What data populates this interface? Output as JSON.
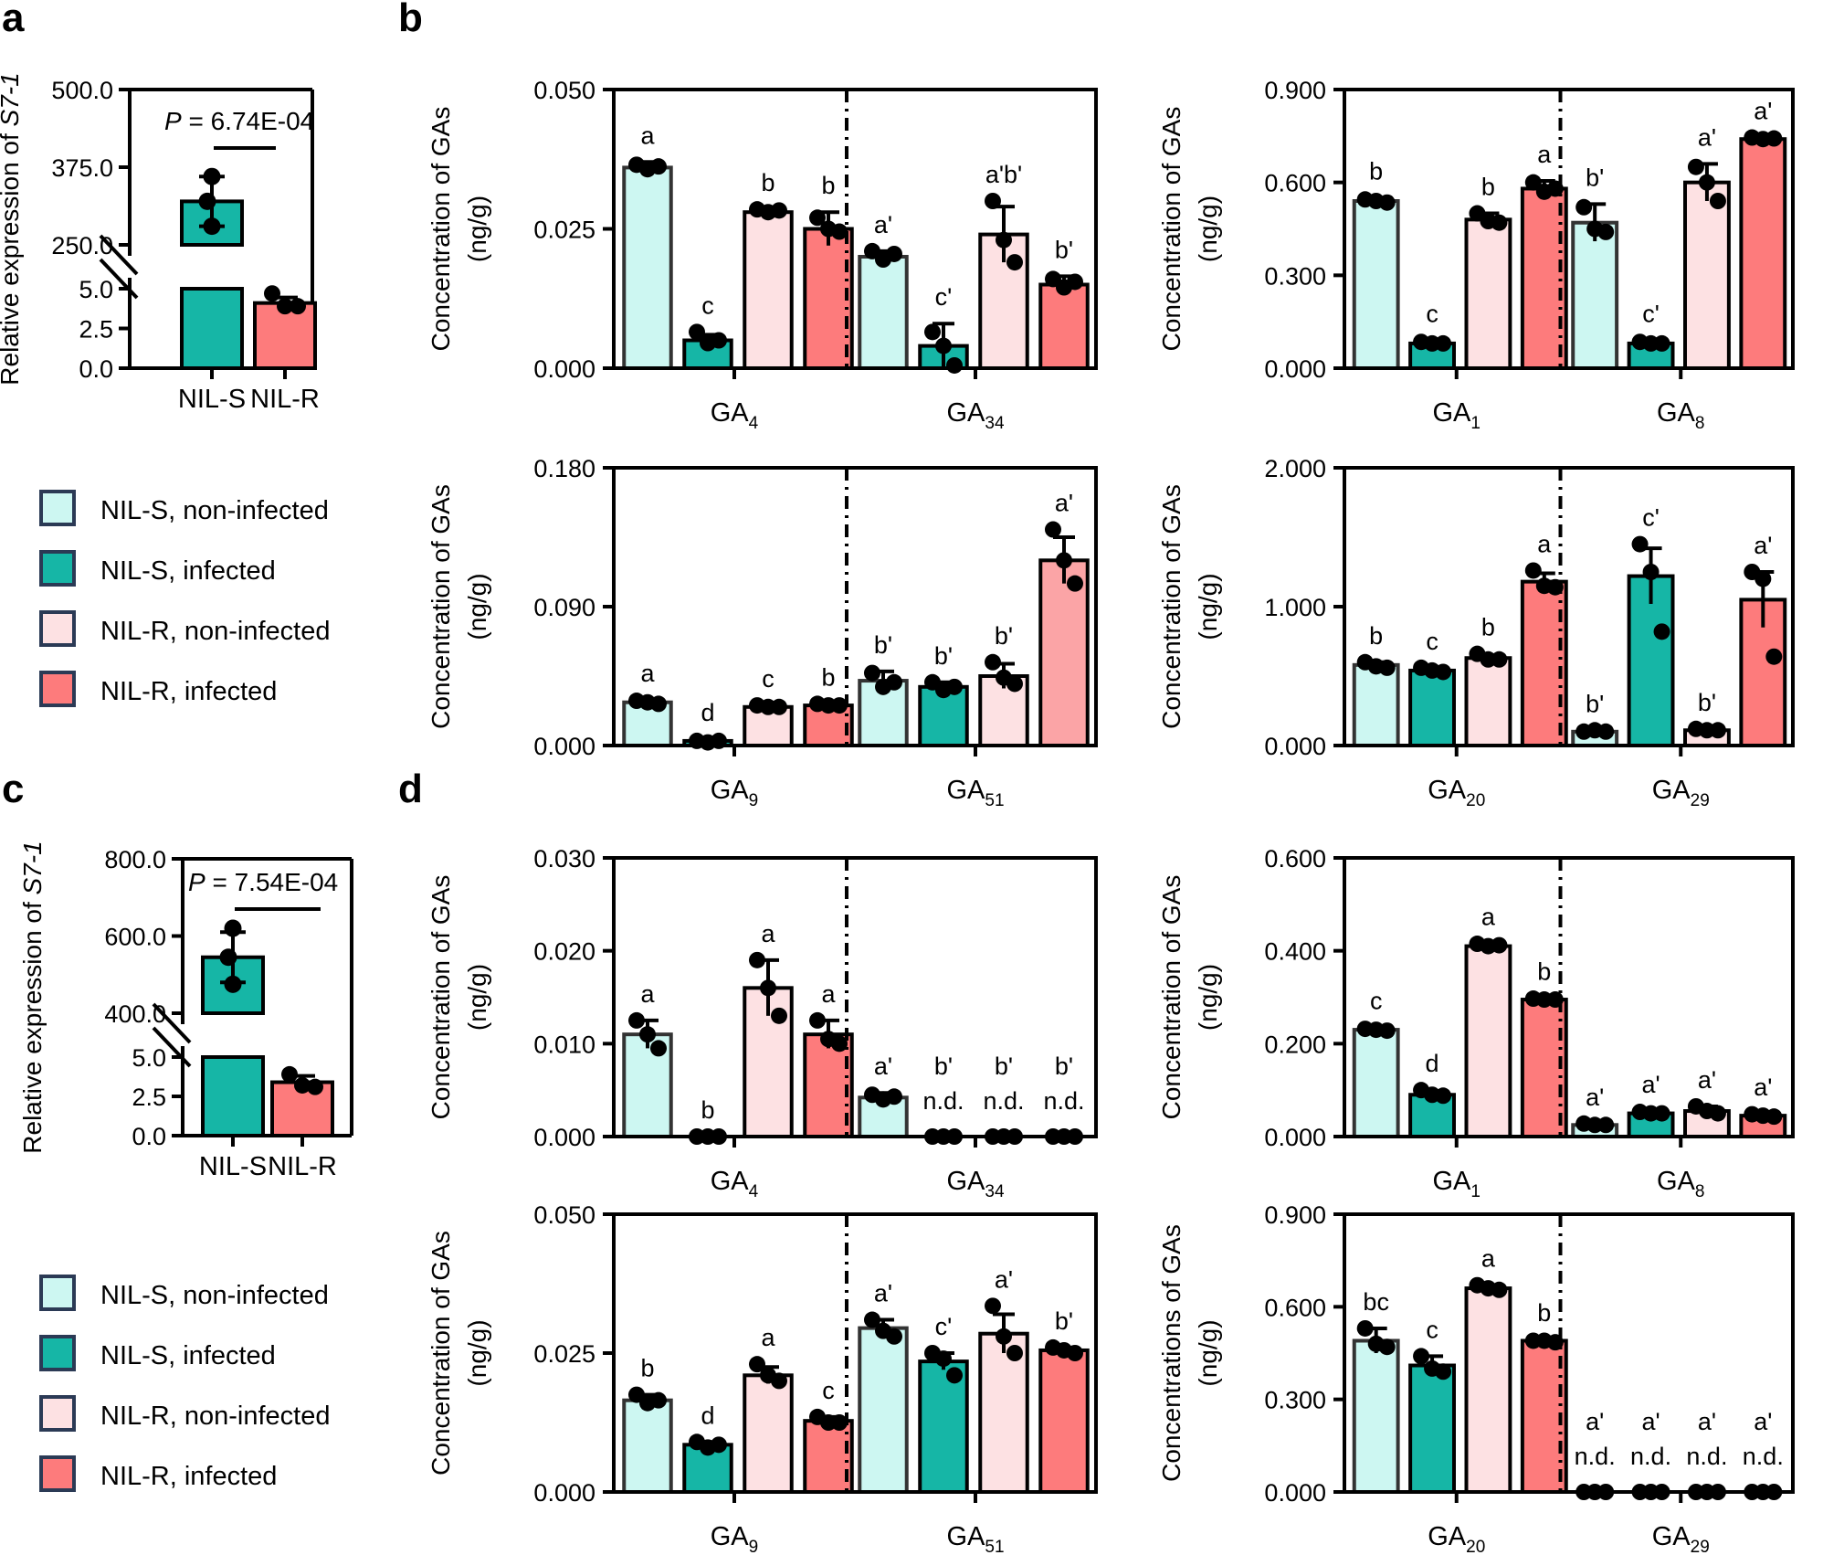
{
  "panel_labels": [
    "a",
    "b",
    "c",
    "d"
  ],
  "colors": {
    "nil_s_noninfected": "#cdf7f2",
    "nil_s_infected": "#16b6a6",
    "nil_r_noninfected": "#fde1e3",
    "nil_r_infected": "#fd7b7c",
    "nil_r_infected_light": "#fba4a6",
    "axis": "#000000",
    "legend_border": "#2b3a55"
  },
  "legend": [
    {
      "label": "NIL-S, non-infected",
      "color_key": "nil_s_noninfected"
    },
    {
      "label": "NIL-S, infected",
      "color_key": "nil_s_infected"
    },
    {
      "label": "NIL-R, non-infected",
      "color_key": "nil_r_noninfected"
    },
    {
      "label": "NIL-R, infected",
      "color_key": "nil_r_infected"
    }
  ],
  "chart_data": [
    {
      "id": "a",
      "type": "bar",
      "ylabel_prefix": "Relative expression of ",
      "ylabel_gene": "S7-1",
      "categories": [
        "NIL-S",
        "NIL-R"
      ],
      "values": [
        320,
        4.1
      ],
      "errors": [
        40,
        0.35
      ],
      "points": [
        [
          360,
          320,
          280
        ],
        [
          4.7,
          3.9,
          3.9
        ]
      ],
      "pvalue_label": "P",
      "pvalue_text": " = 6.74E-04",
      "ticks_upper": [
        "500.0",
        "375.0",
        "250.0"
      ],
      "ticks_lower": [
        "5.0",
        "2.5",
        "0.0"
      ],
      "upper_range": [
        250,
        500
      ],
      "lower_range": [
        0,
        5
      ],
      "color_keys": [
        "nil_s_infected",
        "nil_r_infected"
      ]
    },
    {
      "id": "c",
      "type": "bar",
      "ylabel_prefix": "Relative expression of ",
      "ylabel_gene": "S7-1",
      "categories": [
        "NIL-S",
        "NIL-R"
      ],
      "values": [
        545,
        3.4
      ],
      "errors": [
        65,
        0.4
      ],
      "points": [
        [
          620,
          545,
          475
        ],
        [
          3.9,
          3.2,
          3.1
        ]
      ],
      "pvalue_label": "P",
      "pvalue_text": " = 7.54E-04",
      "ticks_upper": [
        "800.0",
        "600.0",
        "400.0"
      ],
      "ticks_lower": [
        "5.0",
        "2.5",
        "0.0"
      ],
      "upper_range": [
        400,
        800
      ],
      "lower_range": [
        0,
        5
      ],
      "color_keys": [
        "nil_s_infected",
        "nil_r_infected"
      ]
    },
    {
      "id": "b1",
      "type": "bar",
      "ylabel_line1": "Concentration of GAs",
      "ylabel_line2": "(ng/g)",
      "ymax": 0.05,
      "yticks": [
        "0.000",
        "0.025",
        "0.050"
      ],
      "groups": [
        {
          "name": "GA",
          "sub": "4",
          "values": [
            0.036,
            0.005,
            0.028,
            0.025
          ],
          "errors": [
            0.001,
            0.001,
            0.0005,
            0.003
          ],
          "points": [
            [
              0.0365,
              0.0357,
              0.0362
            ],
            [
              0.0065,
              0.0045,
              0.005
            ],
            [
              0.0285,
              0.028,
              0.0283
            ],
            [
              0.027,
              0.025,
              0.0245
            ]
          ],
          "letters": [
            "a",
            "c",
            "b",
            "b"
          ],
          "nd": [
            false,
            false,
            false,
            false
          ]
        },
        {
          "name": "GA",
          "sub": "34",
          "values": [
            0.02,
            0.004,
            0.024,
            0.015
          ],
          "errors": [
            0.001,
            0.004,
            0.005,
            0.0015
          ],
          "points": [
            [
              0.021,
              0.0195,
              0.0205
            ],
            [
              0.0065,
              0.004,
              0.0005
            ],
            [
              0.03,
              0.023,
              0.019
            ],
            [
              0.016,
              0.0145,
              0.0155
            ]
          ],
          "letters": [
            "a'",
            "c'",
            "a'b'",
            "b'"
          ],
          "nd": [
            false,
            false,
            false,
            false
          ]
        }
      ]
    },
    {
      "id": "b2",
      "type": "bar",
      "ylabel_line1": "Concentration of GAs",
      "ylabel_line2": "(ng/g)",
      "ymax": 0.9,
      "yticks": [
        "0.000",
        "0.300",
        "0.600",
        "0.900"
      ],
      "groups": [
        {
          "name": "GA",
          "sub": "1",
          "values": [
            0.54,
            0.08,
            0.48,
            0.58
          ],
          "errors": [
            0.01,
            0.01,
            0.02,
            0.025
          ],
          "points": [
            [
              0.545,
              0.54,
              0.535
            ],
            [
              0.085,
              0.08,
              0.08
            ],
            [
              0.5,
              0.475,
              0.47
            ],
            [
              0.6,
              0.57,
              0.58
            ]
          ],
          "letters": [
            "b",
            "c",
            "b",
            "a"
          ],
          "nd": [
            false,
            false,
            false,
            false
          ]
        },
        {
          "name": "GA",
          "sub": "8",
          "values": [
            0.47,
            0.08,
            0.6,
            0.74
          ],
          "errors": [
            0.06,
            0.01,
            0.06,
            0.005
          ],
          "points": [
            [
              0.52,
              0.45,
              0.44
            ],
            [
              0.085,
              0.08,
              0.08
            ],
            [
              0.65,
              0.6,
              0.54
            ],
            [
              0.745,
              0.74,
              0.742
            ]
          ],
          "letters": [
            "b'",
            "c'",
            "a'",
            "a'"
          ],
          "nd": [
            false,
            false,
            false,
            false
          ]
        }
      ]
    },
    {
      "id": "b3",
      "type": "bar",
      "ylabel_line1": "Concentration of GAs",
      "ylabel_line2": "(ng/g)",
      "ymax": 0.18,
      "yticks": [
        "0.000",
        "0.090",
        "0.180"
      ],
      "groups": [
        {
          "name": "GA",
          "sub": "9",
          "values": [
            0.028,
            0.003,
            0.025,
            0.026
          ],
          "errors": [
            0.0015,
            0.001,
            0.001,
            0.001
          ],
          "points": [
            [
              0.029,
              0.028,
              0.027
            ],
            [
              0.003,
              0.002,
              0.003
            ],
            [
              0.026,
              0.025,
              0.025
            ],
            [
              0.027,
              0.026,
              0.026
            ]
          ],
          "letters": [
            "a",
            "d",
            "c",
            "b"
          ],
          "nd": [
            false,
            false,
            false,
            false
          ]
        },
        {
          "name": "GA",
          "sub": "51",
          "values": [
            0.042,
            0.038,
            0.045,
            0.12
          ],
          "errors": [
            0.006,
            0.003,
            0.008,
            0.015
          ],
          "points": [
            [
              0.047,
              0.038,
              0.041
            ],
            [
              0.041,
              0.036,
              0.038
            ],
            [
              0.054,
              0.044,
              0.04
            ],
            [
              0.14,
              0.12,
              0.105
            ]
          ],
          "letters": [
            "b'",
            "b'",
            "b'",
            "a'"
          ],
          "nd": [
            false,
            false,
            false,
            false
          ]
        }
      ]
    },
    {
      "id": "b4",
      "type": "bar",
      "ylabel_line1": "Concentration of GAs",
      "ylabel_line2": "(ng/g)",
      "ymax": 2.0,
      "yticks": [
        "0.000",
        "1.000",
        "2.000"
      ],
      "groups": [
        {
          "name": "GA",
          "sub": "20",
          "values": [
            0.58,
            0.54,
            0.63,
            1.18
          ],
          "errors": [
            0.02,
            0.02,
            0.02,
            0.06
          ],
          "points": [
            [
              0.6,
              0.57,
              0.56
            ],
            [
              0.56,
              0.54,
              0.53
            ],
            [
              0.66,
              0.62,
              0.62
            ],
            [
              1.26,
              1.15,
              1.14
            ]
          ],
          "letters": [
            "b",
            "c",
            "b",
            "a"
          ],
          "nd": [
            false,
            false,
            false,
            false
          ]
        },
        {
          "name": "GA",
          "sub": "29",
          "values": [
            0.1,
            1.22,
            0.11,
            1.05
          ],
          "errors": [
            0.005,
            0.2,
            0.005,
            0.2
          ],
          "points": [
            [
              0.1,
              0.11,
              0.1
            ],
            [
              1.45,
              1.25,
              0.82
            ],
            [
              0.12,
              0.11,
              0.11
            ],
            [
              1.25,
              1.2,
              0.64
            ]
          ],
          "letters": [
            "b'",
            "c'",
            "b'",
            "a'"
          ],
          "nd": [
            false,
            false,
            false,
            false
          ]
        }
      ]
    },
    {
      "id": "d1",
      "type": "bar",
      "ylabel_line1": "Concentration of GAs",
      "ylabel_line2": "(ng/g)",
      "ymax": 0.03,
      "yticks": [
        "0.000",
        "0.010",
        "0.020",
        "0.030"
      ],
      "groups": [
        {
          "name": "GA",
          "sub": "4",
          "values": [
            0.011,
            0.0,
            0.016,
            0.011
          ],
          "errors": [
            0.0015,
            0.0,
            0.003,
            0.0015
          ],
          "points": [
            [
              0.0125,
              0.011,
              0.0095
            ],
            [
              0,
              0,
              0
            ],
            [
              0.019,
              0.016,
              0.013
            ],
            [
              0.0125,
              0.0105,
              0.01
            ]
          ],
          "letters": [
            "a",
            "b",
            "a",
            "a"
          ],
          "nd": [
            false,
            false,
            false,
            false
          ]
        },
        {
          "name": "GA",
          "sub": "34",
          "values": [
            0.0042,
            0.0,
            0.0,
            0.0
          ],
          "errors": [
            0.0005,
            0,
            0,
            0
          ],
          "points": [
            [
              0.0045,
              0.004,
              0.0043
            ],
            [
              0,
              0,
              0
            ],
            [
              0,
              0,
              0
            ],
            [
              0,
              0,
              0
            ]
          ],
          "letters": [
            "a'",
            "b'",
            "b'",
            "b'"
          ],
          "nd": [
            false,
            true,
            true,
            true
          ],
          "nd_text": "n.d."
        }
      ]
    },
    {
      "id": "d2",
      "type": "bar",
      "ylabel_line1": "Concentration of GAs",
      "ylabel_line2": "(ng/g)",
      "ymax": 0.6,
      "yticks": [
        "0.000",
        "0.200",
        "0.400",
        "0.600"
      ],
      "groups": [
        {
          "name": "GA",
          "sub": "1",
          "values": [
            0.23,
            0.09,
            0.41,
            0.295
          ],
          "errors": [
            0.005,
            0.007,
            0.006,
            0.003
          ],
          "points": [
            [
              0.232,
              0.23,
              0.228
            ],
            [
              0.1,
              0.09,
              0.088
            ],
            [
              0.415,
              0.41,
              0.412
            ],
            [
              0.297,
              0.295,
              0.295
            ]
          ],
          "letters": [
            "c",
            "d",
            "a",
            "b"
          ],
          "nd": [
            false,
            false,
            false,
            false
          ]
        },
        {
          "name": "GA",
          "sub": "8",
          "values": [
            0.025,
            0.05,
            0.055,
            0.045
          ],
          "errors": [
            0.003,
            0.005,
            0.01,
            0.004
          ],
          "points": [
            [
              0.028,
              0.025,
              0.025
            ],
            [
              0.053,
              0.05,
              0.05
            ],
            [
              0.065,
              0.055,
              0.05
            ],
            [
              0.048,
              0.045,
              0.043
            ]
          ],
          "letters": [
            "a'",
            "a'",
            "a'",
            "a'"
          ],
          "nd": [
            false,
            false,
            false,
            false
          ]
        }
      ]
    },
    {
      "id": "d3",
      "type": "bar",
      "ylabel_line1": "Concentration of GAs",
      "ylabel_line2": "(ng/g)",
      "ymax": 0.05,
      "yticks": [
        "0.000",
        "0.025",
        "0.050"
      ],
      "groups": [
        {
          "name": "GA",
          "sub": "9",
          "values": [
            0.0165,
            0.0085,
            0.021,
            0.0128
          ],
          "errors": [
            0.001,
            0.0005,
            0.0015,
            0.0007
          ],
          "points": [
            [
              0.0175,
              0.016,
              0.0165
            ],
            [
              0.009,
              0.008,
              0.0085
            ],
            [
              0.023,
              0.021,
              0.02
            ],
            [
              0.0135,
              0.0125,
              0.0125
            ]
          ],
          "letters": [
            "b",
            "d",
            "a",
            "c"
          ],
          "nd": [
            false,
            false,
            false,
            false
          ]
        },
        {
          "name": "GA",
          "sub": "51",
          "values": [
            0.0295,
            0.0235,
            0.0285,
            0.0255
          ],
          "errors": [
            0.0015,
            0.0015,
            0.0035,
            0.0005
          ],
          "points": [
            [
              0.031,
              0.029,
              0.028
            ],
            [
              0.025,
              0.024,
              0.021
            ],
            [
              0.0335,
              0.028,
              0.025
            ],
            [
              0.026,
              0.0255,
              0.025
            ]
          ],
          "letters": [
            "a'",
            "c'",
            "a'",
            "b'"
          ],
          "nd": [
            false,
            false,
            false,
            false
          ]
        }
      ]
    },
    {
      "id": "d4",
      "type": "bar",
      "ylabel_line1": "Concentrations of GAs",
      "ylabel_line2": "(ng/g)",
      "ymax": 0.9,
      "yticks": [
        "0.000",
        "0.300",
        "0.600",
        "0.900"
      ],
      "groups": [
        {
          "name": "GA",
          "sub": "20",
          "values": [
            0.49,
            0.41,
            0.66,
            0.49
          ],
          "errors": [
            0.04,
            0.03,
            0.01,
            0.005
          ],
          "points": [
            [
              0.53,
              0.48,
              0.47
            ],
            [
              0.44,
              0.4,
              0.39
            ],
            [
              0.67,
              0.66,
              0.655
            ],
            [
              0.49,
              0.49,
              0.485
            ]
          ],
          "letters": [
            "bc",
            "c",
            "a",
            "b"
          ],
          "nd": [
            false,
            false,
            false,
            false
          ]
        },
        {
          "name": "GA",
          "sub": "29",
          "values": [
            0,
            0,
            0,
            0
          ],
          "errors": [
            0,
            0,
            0,
            0
          ],
          "points": [
            [
              0,
              0,
              0
            ],
            [
              0,
              0,
              0
            ],
            [
              0,
              0,
              0
            ],
            [
              0,
              0,
              0
            ]
          ],
          "letters": [
            "a'",
            "a'",
            "a'",
            "a'"
          ],
          "nd": [
            true,
            true,
            true,
            true
          ],
          "nd_text": "n.d."
        }
      ]
    }
  ]
}
